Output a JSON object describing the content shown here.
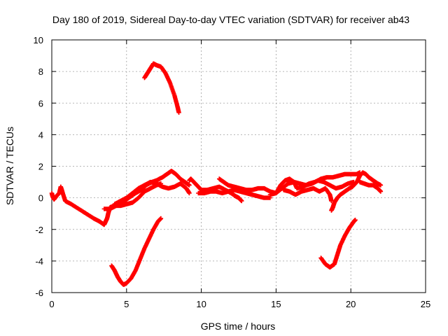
{
  "chart_data": {
    "type": "scatter",
    "title": "Day 180 of 2019, Sidereal Day-to-day VTEC variation (SDTVAR) for receiver ab43",
    "xlabel": "GPS time / hours",
    "ylabel": "SDTVAR / TECUs",
    "xlim": [
      0,
      25
    ],
    "ylim": [
      -6,
      10
    ],
    "xticks": [
      0,
      5,
      10,
      15,
      20,
      25
    ],
    "yticks": [
      -6,
      -4,
      -2,
      0,
      2,
      4,
      6,
      8,
      10
    ],
    "grid": true,
    "marker": "+",
    "series_color": "#ff0000",
    "series": [
      {
        "name": "track-1",
        "points": [
          [
            0.0,
            0.3
          ],
          [
            0.05,
            0.1
          ],
          [
            0.15,
            -0.1
          ],
          [
            0.3,
            0.1
          ],
          [
            0.5,
            0.3
          ],
          [
            0.6,
            0.7
          ],
          [
            0.7,
            0.4
          ],
          [
            0.9,
            -0.2
          ],
          [
            1.3,
            -0.4
          ],
          [
            1.8,
            -0.7
          ],
          [
            2.3,
            -1.0
          ],
          [
            2.8,
            -1.3
          ],
          [
            3.2,
            -1.5
          ],
          [
            3.5,
            -1.7
          ],
          [
            3.6,
            -1.5
          ],
          [
            3.7,
            -1.3
          ],
          [
            3.8,
            -0.9
          ],
          [
            3.9,
            -0.6
          ],
          [
            4.2,
            -0.5
          ],
          [
            4.6,
            -0.5
          ],
          [
            5.0,
            -0.4
          ],
          [
            5.4,
            -0.3
          ],
          [
            5.8,
            0.0
          ],
          [
            6.2,
            0.4
          ],
          [
            6.6,
            0.6
          ],
          [
            7.0,
            0.8
          ],
          [
            7.3,
            0.9
          ]
        ]
      },
      {
        "name": "track-2",
        "points": [
          [
            3.5,
            -0.7
          ],
          [
            3.9,
            -0.7
          ],
          [
            4.3,
            -0.5
          ],
          [
            4.7,
            -0.3
          ],
          [
            5.0,
            -0.1
          ],
          [
            5.3,
            0.1
          ],
          [
            5.6,
            0.3
          ],
          [
            6.0,
            0.5
          ],
          [
            6.3,
            0.8
          ],
          [
            6.7,
            1.0
          ],
          [
            7.0,
            1.1
          ],
          [
            7.4,
            1.3
          ],
          [
            7.7,
            1.5
          ],
          [
            8.0,
            1.7
          ],
          [
            8.3,
            1.5
          ],
          [
            8.6,
            1.2
          ],
          [
            8.9,
            1.0
          ],
          [
            9.2,
            0.8
          ]
        ]
      },
      {
        "name": "track-3",
        "points": [
          [
            4.2,
            -0.4
          ],
          [
            4.6,
            -0.2
          ],
          [
            5.0,
            0.0
          ],
          [
            5.4,
            0.3
          ],
          [
            5.8,
            0.6
          ],
          [
            6.2,
            0.8
          ],
          [
            6.6,
            1.0
          ],
          [
            7.0,
            0.9
          ],
          [
            7.4,
            0.7
          ],
          [
            7.8,
            0.6
          ],
          [
            8.2,
            0.7
          ],
          [
            8.6,
            0.9
          ],
          [
            9.0,
            0.6
          ],
          [
            9.2,
            0.3
          ]
        ]
      },
      {
        "name": "track-4",
        "points": [
          [
            9.2,
            1.1
          ],
          [
            9.3,
            1.2
          ],
          [
            9.5,
            1.0
          ],
          [
            9.7,
            0.8
          ],
          [
            9.9,
            0.6
          ],
          [
            10.0,
            0.5
          ],
          [
            10.4,
            0.5
          ],
          [
            10.8,
            0.6
          ],
          [
            11.2,
            0.7
          ],
          [
            11.6,
            0.5
          ],
          [
            12.0,
            0.3
          ],
          [
            12.3,
            0.1
          ],
          [
            12.5,
            0.0
          ],
          [
            12.7,
            -0.2
          ]
        ]
      },
      {
        "name": "track-5",
        "points": [
          [
            9.8,
            0.3
          ],
          [
            10.2,
            0.3
          ],
          [
            10.6,
            0.4
          ],
          [
            11.0,
            0.4
          ],
          [
            11.4,
            0.3
          ],
          [
            11.8,
            0.4
          ],
          [
            12.2,
            0.5
          ],
          [
            12.6,
            0.4
          ],
          [
            13.0,
            0.3
          ],
          [
            13.4,
            0.2
          ],
          [
            13.8,
            0.1
          ],
          [
            14.2,
            0.0
          ],
          [
            14.6,
            0.0
          ]
        ]
      },
      {
        "name": "track-6",
        "points": [
          [
            11.2,
            1.2
          ],
          [
            11.5,
            1.0
          ],
          [
            11.8,
            0.8
          ],
          [
            12.2,
            0.7
          ],
          [
            12.6,
            0.6
          ],
          [
            13.0,
            0.5
          ],
          [
            13.4,
            0.5
          ],
          [
            13.8,
            0.6
          ],
          [
            14.2,
            0.6
          ],
          [
            14.6,
            0.4
          ],
          [
            15.0,
            0.3
          ],
          [
            15.4,
            0.6
          ],
          [
            15.8,
            0.9
          ],
          [
            16.2,
            1.0
          ],
          [
            16.6,
            0.9
          ],
          [
            17.0,
            0.8
          ],
          [
            17.4,
            0.9
          ],
          [
            17.8,
            1.1
          ],
          [
            18.2,
            1.0
          ],
          [
            18.6,
            0.8
          ],
          [
            19.0,
            0.6
          ],
          [
            19.4,
            0.7
          ],
          [
            19.8,
            0.9
          ],
          [
            20.2,
            1.0
          ]
        ]
      },
      {
        "name": "track-7",
        "points": [
          [
            14.6,
            0.2
          ],
          [
            15.0,
            0.3
          ],
          [
            15.3,
            0.8
          ],
          [
            15.6,
            1.1
          ],
          [
            15.9,
            1.2
          ],
          [
            16.2,
            1.0
          ],
          [
            16.4,
            0.6
          ],
          [
            16.8,
            0.7
          ],
          [
            17.2,
            0.9
          ],
          [
            17.6,
            1.0
          ],
          [
            18.0,
            1.2
          ],
          [
            18.4,
            1.3
          ],
          [
            18.8,
            1.3
          ],
          [
            19.2,
            1.4
          ],
          [
            19.6,
            1.5
          ],
          [
            20.0,
            1.5
          ],
          [
            20.4,
            1.5
          ],
          [
            20.6,
            1.6
          ]
        ]
      },
      {
        "name": "track-8",
        "points": [
          [
            15.5,
            0.5
          ],
          [
            15.9,
            0.4
          ],
          [
            16.3,
            0.2
          ],
          [
            16.7,
            0.4
          ],
          [
            17.1,
            0.5
          ],
          [
            17.5,
            0.6
          ],
          [
            17.9,
            0.4
          ],
          [
            18.3,
            0.6
          ],
          [
            18.6,
            0.2
          ],
          [
            18.7,
            -0.2
          ]
        ]
      },
      {
        "name": "track-9",
        "points": [
          [
            18.7,
            -0.8
          ],
          [
            18.8,
            -0.6
          ],
          [
            18.9,
            -0.3
          ],
          [
            19.1,
            0.0
          ],
          [
            19.3,
            0.2
          ],
          [
            19.6,
            0.4
          ],
          [
            19.9,
            0.6
          ],
          [
            20.1,
            0.7
          ],
          [
            20.4,
            1.0
          ],
          [
            20.6,
            1.4
          ],
          [
            20.8,
            1.6
          ],
          [
            21.0,
            1.5
          ],
          [
            21.2,
            1.3
          ],
          [
            21.5,
            1.1
          ],
          [
            21.8,
            0.9
          ],
          [
            22.0,
            0.8
          ]
        ]
      },
      {
        "name": "track-10",
        "points": [
          [
            20.6,
            1.0
          ],
          [
            20.9,
            0.9
          ],
          [
            21.2,
            0.8
          ],
          [
            21.5,
            0.8
          ],
          [
            21.8,
            0.6
          ],
          [
            22.0,
            0.4
          ]
        ]
      },
      {
        "name": "track-11",
        "points": [
          [
            4.0,
            -4.3
          ],
          [
            4.2,
            -4.6
          ],
          [
            4.4,
            -5.0
          ],
          [
            4.6,
            -5.3
          ],
          [
            4.8,
            -5.5
          ],
          [
            5.0,
            -5.4
          ],
          [
            5.3,
            -5.1
          ],
          [
            5.6,
            -4.6
          ],
          [
            5.9,
            -3.9
          ],
          [
            6.2,
            -3.2
          ],
          [
            6.5,
            -2.6
          ],
          [
            6.8,
            -2.0
          ],
          [
            7.1,
            -1.5
          ],
          [
            7.3,
            -1.3
          ]
        ]
      },
      {
        "name": "track-12",
        "points": [
          [
            6.2,
            7.6
          ],
          [
            6.4,
            7.9
          ],
          [
            6.6,
            8.2
          ],
          [
            6.8,
            8.5
          ],
          [
            7.0,
            8.4
          ],
          [
            7.3,
            8.3
          ],
          [
            7.6,
            7.9
          ],
          [
            7.9,
            7.3
          ],
          [
            8.2,
            6.5
          ],
          [
            8.4,
            5.8
          ],
          [
            8.5,
            5.4
          ]
        ]
      },
      {
        "name": "track-13",
        "points": [
          [
            18.0,
            -3.8
          ],
          [
            18.3,
            -4.2
          ],
          [
            18.6,
            -4.4
          ],
          [
            18.9,
            -4.2
          ],
          [
            19.1,
            -3.6
          ],
          [
            19.3,
            -3.0
          ],
          [
            19.6,
            -2.4
          ],
          [
            19.9,
            -1.9
          ],
          [
            20.2,
            -1.5
          ],
          [
            20.3,
            -1.4
          ]
        ]
      }
    ]
  }
}
